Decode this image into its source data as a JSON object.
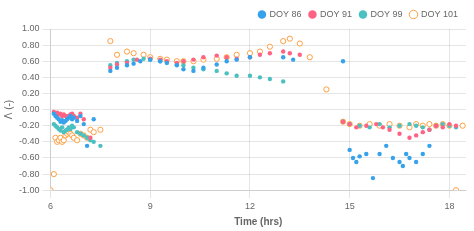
{
  "chart_data": {
    "type": "scatter",
    "xlabel": "Time (hrs)",
    "ylabel": "Λ (-)",
    "xlim": [
      6,
      18.5
    ],
    "ylim": [
      -1.0,
      1.0
    ],
    "xticks": [
      6,
      9,
      12,
      15,
      18
    ],
    "yticks": [
      {
        "value": -1.0,
        "label": "-1.00"
      },
      {
        "value": -0.8,
        "label": "-0.80"
      },
      {
        "value": -0.6,
        "label": "-0.60"
      },
      {
        "value": -0.4,
        "label": "-0.40"
      },
      {
        "value": -0.2,
        "label": "-0.20"
      },
      {
        "value": 0.0,
        "label": "0.00"
      },
      {
        "value": 0.2,
        "label": "0.20"
      },
      {
        "value": 0.4,
        "label": "0.40"
      },
      {
        "value": 0.6,
        "label": "0.60"
      },
      {
        "value": 0.8,
        "label": "0.80"
      },
      {
        "value": 1.0,
        "label": "1.00"
      }
    ],
    "grid": true,
    "legend": "upper right",
    "series": [
      {
        "name": "DOY 86",
        "marker": "circle",
        "x": [
          6.1,
          6.15,
          6.2,
          6.25,
          6.3,
          6.35,
          6.4,
          6.45,
          6.5,
          6.55,
          6.6,
          6.65,
          6.7,
          6.8,
          6.9,
          7.0,
          7.1,
          7.3,
          7.8,
          8.0,
          8.3,
          8.5,
          8.7,
          9.0,
          9.3,
          9.5,
          9.8,
          10.0,
          10.3,
          10.6,
          11.0,
          11.3,
          11.6,
          12.0,
          13.0,
          13.3,
          14.8,
          15.0,
          15.1,
          15.2,
          15.3,
          15.5,
          15.7,
          15.9,
          16.1,
          16.3,
          16.5,
          16.6,
          16.7,
          16.8,
          17.0,
          17.2,
          17.4
        ],
        "values": [
          -0.05,
          -0.08,
          -0.1,
          -0.12,
          -0.15,
          -0.13,
          -0.16,
          -0.14,
          -0.12,
          -0.1,
          -0.08,
          -0.12,
          -0.1,
          -0.14,
          -0.08,
          -0.18,
          -0.45,
          -0.12,
          0.48,
          0.52,
          0.55,
          0.57,
          0.6,
          0.62,
          0.6,
          0.58,
          0.55,
          0.5,
          0.48,
          0.52,
          0.56,
          0.6,
          0.62,
          0.65,
          0.65,
          0.62,
          0.6,
          -0.5,
          -0.6,
          -0.65,
          -0.58,
          -0.55,
          -0.85,
          -0.55,
          -0.45,
          -0.6,
          -0.65,
          -0.7,
          -0.55,
          -0.6,
          -0.65,
          -0.55,
          -0.45
        ]
      },
      {
        "name": "DOY 91",
        "marker": "circle",
        "x": [
          6.1,
          6.15,
          6.2,
          6.25,
          6.3,
          6.35,
          6.4,
          6.45,
          6.5,
          6.55,
          6.6,
          6.65,
          6.7,
          6.8,
          6.9,
          7.0,
          7.2,
          7.8,
          8.0,
          8.3,
          8.6,
          9.0,
          9.3,
          9.5,
          9.8,
          10.0,
          10.3,
          10.6,
          11.0,
          11.3,
          11.6,
          12.0,
          12.3,
          12.6,
          13.0,
          13.2,
          13.5,
          14.8,
          15.0,
          15.2,
          15.5,
          15.8,
          16.0,
          16.2,
          16.5,
          16.8,
          17.0,
          17.2,
          17.4,
          17.6,
          17.8,
          18.0,
          18.2
        ],
        "values": [
          -0.03,
          -0.05,
          -0.04,
          -0.06,
          -0.05,
          -0.08,
          -0.06,
          -0.08,
          -0.1,
          -0.08,
          -0.06,
          -0.05,
          -0.08,
          -0.1,
          -0.05,
          -0.12,
          -0.35,
          0.52,
          0.56,
          0.58,
          0.62,
          0.63,
          0.62,
          0.6,
          0.58,
          0.6,
          0.62,
          0.65,
          0.67,
          0.65,
          0.63,
          0.65,
          0.68,
          0.7,
          0.72,
          0.7,
          0.68,
          -0.15,
          -0.18,
          -0.22,
          -0.2,
          -0.18,
          -0.22,
          -0.25,
          -0.3,
          -0.35,
          -0.32,
          -0.28,
          -0.25,
          -0.2,
          -0.22,
          -0.18,
          -0.2
        ]
      },
      {
        "name": "DOY 99",
        "marker": "circle",
        "x": [
          6.1,
          6.15,
          6.2,
          6.25,
          6.3,
          6.35,
          6.4,
          6.45,
          6.5,
          6.55,
          6.6,
          6.65,
          6.7,
          6.8,
          6.9,
          7.0,
          7.1,
          7.2,
          7.3,
          7.5,
          7.8,
          8.0,
          8.3,
          8.5,
          8.8,
          9.0,
          9.3,
          9.5,
          9.8,
          10.0,
          10.3,
          10.6,
          11.0,
          11.3,
          11.6,
          12.0,
          12.3,
          12.6,
          13.0,
          14.8,
          15.0,
          15.3,
          15.6,
          15.9,
          16.2,
          16.5,
          16.8,
          17.0,
          17.2,
          17.4,
          17.6,
          17.8,
          18.0,
          18.2
        ],
        "values": [
          -0.18,
          -0.2,
          -0.22,
          -0.24,
          -0.26,
          -0.22,
          -0.28,
          -0.26,
          -0.25,
          -0.22,
          -0.24,
          -0.2,
          -0.22,
          -0.28,
          -0.3,
          -0.32,
          -0.35,
          -0.38,
          -0.4,
          -0.45,
          0.55,
          0.58,
          0.6,
          0.62,
          0.63,
          0.62,
          0.6,
          0.58,
          0.56,
          0.55,
          0.52,
          0.5,
          0.48,
          0.45,
          0.42,
          0.42,
          0.4,
          0.38,
          0.35,
          -0.15,
          -0.18,
          -0.2,
          -0.22,
          -0.18,
          -0.22,
          -0.2,
          -0.18,
          -0.2,
          -0.22,
          -0.25,
          -0.2,
          -0.18,
          -0.2,
          -0.22
        ]
      },
      {
        "name": "DOY 101",
        "marker": "open circle",
        "x": [
          6.0,
          6.1,
          6.15,
          6.2,
          6.25,
          6.3,
          6.35,
          6.4,
          6.45,
          6.5,
          6.55,
          6.6,
          6.65,
          6.7,
          6.8,
          6.9,
          7.0,
          7.1,
          7.2,
          7.3,
          7.5,
          7.8,
          8.0,
          8.3,
          8.5,
          8.8,
          9.0,
          9.3,
          9.5,
          9.8,
          10.0,
          10.3,
          10.6,
          11.0,
          11.3,
          11.6,
          12.0,
          12.3,
          12.6,
          13.0,
          13.2,
          13.5,
          13.8,
          14.3,
          14.8,
          15.0,
          15.3,
          15.6,
          15.9,
          16.2,
          16.5,
          16.8,
          17.0,
          17.2,
          17.4,
          17.6,
          17.8,
          18.0,
          18.2,
          18.4
        ],
        "values": [
          -1.0,
          -0.8,
          -0.35,
          -0.4,
          -0.38,
          -0.35,
          -0.4,
          -0.38,
          -0.32,
          -0.3,
          -0.28,
          -0.3,
          -0.32,
          -0.35,
          -0.38,
          -0.3,
          -0.32,
          -0.35,
          -0.25,
          -0.28,
          -0.25,
          0.85,
          0.68,
          0.72,
          0.7,
          0.68,
          0.65,
          0.63,
          0.62,
          0.6,
          0.6,
          0.6,
          0.62,
          0.63,
          0.65,
          0.68,
          0.7,
          0.72,
          0.78,
          0.85,
          0.88,
          0.82,
          0.65,
          0.25,
          -0.15,
          -0.18,
          -0.2,
          -0.18,
          -0.2,
          -0.18,
          -0.2,
          -0.22,
          -0.18,
          -0.2,
          -0.18,
          -0.2,
          -0.18,
          -0.2,
          -1.0,
          -0.2
        ]
      }
    ]
  }
}
